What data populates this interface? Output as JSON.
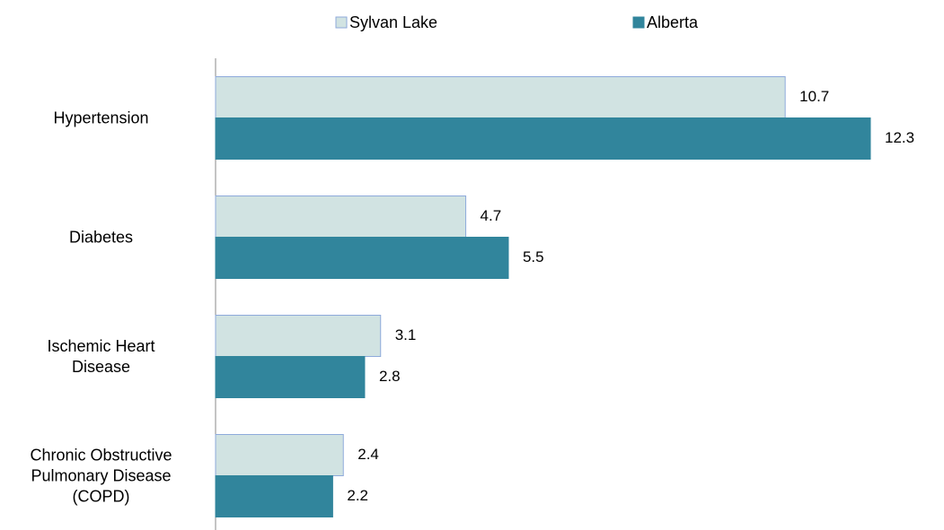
{
  "chart_data": {
    "type": "bar",
    "orientation": "horizontal",
    "categories": [
      "Hypertension",
      "Diabetes",
      "Ischemic Heart\nDisease",
      "Chronic Obstructive\nPulmonary Disease\n(COPD)"
    ],
    "series": [
      {
        "name": "Sylvan Lake",
        "color": "#d1e3e2",
        "edge": "#8eaadb",
        "values": [
          10.7,
          4.7,
          3.1,
          2.4
        ]
      },
      {
        "name": "Alberta",
        "color": "#31859c",
        "edge": "#31859c",
        "values": [
          12.3,
          5.5,
          2.8,
          2.2
        ]
      }
    ],
    "legend": "top"
  }
}
